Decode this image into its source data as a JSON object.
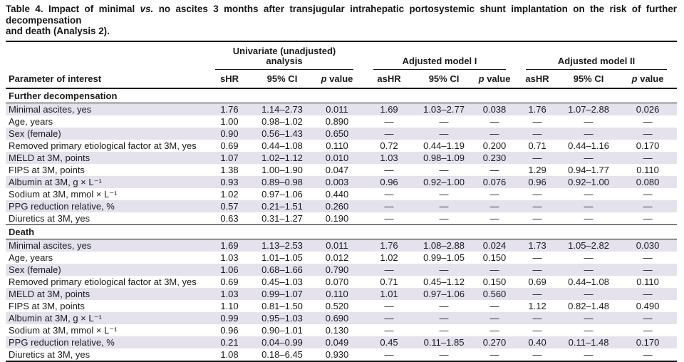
{
  "title": {
    "prefix": "Table 4.",
    "mid1": "Impact of minimal",
    "vs": "vs.",
    "mid2": "no ascites 3 months after transjugular intrahepatic portosystemic shunt implantation on the risk of further decompensation",
    "line2": "and death (Analysis 2)."
  },
  "colors": {
    "row_shade": "#E5E2EE",
    "text": "#1b1b1b",
    "rule": "#141414"
  },
  "table": {
    "param_header": "Parameter of interest",
    "groups": [
      {
        "label": "Univariate (unadjusted) analysis",
        "sub": [
          "sHR",
          "95% CI",
          "p value"
        ]
      },
      {
        "label": "Adjusted model I",
        "sub": [
          "asHR",
          "95% CI",
          "p value"
        ]
      },
      {
        "label": "Adjusted model II",
        "sub": [
          "asHR",
          "95% CI",
          "p value"
        ]
      }
    ],
    "sections": [
      {
        "header": "Further decompensation",
        "rows": [
          {
            "param": "Minimal ascites, yes",
            "values": [
              "1.76",
              "1.14–2.73",
              "0.011",
              "1.69",
              "1.03–2.77",
              "0.038",
              "1.76",
              "1.07–2.88",
              "0.026"
            ]
          },
          {
            "param": "Age, years",
            "values": [
              "1.00",
              "0.98–1.02",
              "0.890",
              "—",
              "—",
              "—",
              "—",
              "—",
              "—"
            ]
          },
          {
            "param": "Sex (female)",
            "values": [
              "0.90",
              "0.56–1.43",
              "0.650",
              "—",
              "—",
              "—",
              "—",
              "—",
              "—"
            ]
          },
          {
            "param": "Removed primary etiological factor at 3M, yes",
            "values": [
              "0.69",
              "0.44–1.08",
              "0.110",
              "0.72",
              "0.44–1.19",
              "0.200",
              "0.71",
              "0.44–1.16",
              "0.170"
            ]
          },
          {
            "param": "MELD at 3M, points",
            "values": [
              "1.07",
              "1.02–1.12",
              "0.010",
              "1.03",
              "0.98–1.09",
              "0.230",
              "—",
              "—",
              "—"
            ]
          },
          {
            "param": "FIPS at 3M, points",
            "values": [
              "1.38",
              "1.00–1.90",
              "0.047",
              "—",
              "—",
              "—",
              "1.29",
              "0.94–1.77",
              "0.110"
            ]
          },
          {
            "param": "Albumin at 3M, g × L⁻¹",
            "values": [
              "0.93",
              "0.89–0.98",
              "0.003",
              "0.96",
              "0.92–1.00",
              "0.076",
              "0.96",
              "0.92–1.00",
              "0.080"
            ]
          },
          {
            "param": "Sodium at 3M, mmol × L⁻¹",
            "values": [
              "1.02",
              "0.97–1.06",
              "0.440",
              "—",
              "—",
              "—",
              "—",
              "—",
              "—"
            ]
          },
          {
            "param": "PPG reduction relative, %",
            "values": [
              "0.57",
              "0.21–1.51",
              "0.260",
              "—",
              "—",
              "—",
              "—",
              "—",
              "—"
            ]
          },
          {
            "param": "Diuretics at 3M, yes",
            "values": [
              "0.63",
              "0.31–1.27",
              "0.190",
              "—",
              "—",
              "—",
              "—",
              "—",
              "—"
            ]
          }
        ]
      },
      {
        "header": "Death",
        "rows": [
          {
            "param": "Minimal ascites, yes",
            "values": [
              "1.69",
              "1.13–2.53",
              "0.011",
              "1.76",
              "1.08–2.88",
              "0.024",
              "1.73",
              "1.05–2.82",
              "0.030"
            ]
          },
          {
            "param": "Age, years",
            "values": [
              "1.03",
              "1.01–1.05",
              "0.012",
              "1.02",
              "0.99–1.05",
              "0.150",
              "—",
              "—",
              "—"
            ]
          },
          {
            "param": "Sex (female)",
            "values": [
              "1.06",
              "0.68–1.66",
              "0.790",
              "—",
              "—",
              "—",
              "—",
              "—",
              "—"
            ]
          },
          {
            "param": "Removed primary etiological factor at 3M, yes",
            "values": [
              "0.69",
              "0.45–1.03",
              "0.070",
              "0.71",
              "0.45–1.12",
              "0.150",
              "0.69",
              "0.44–1.08",
              "0.110"
            ]
          },
          {
            "param": "MELD at 3M, points",
            "values": [
              "1.03",
              "0.99–1.07",
              "0.110",
              "1.01",
              "0.97–1.06",
              "0.560",
              "—",
              "—",
              "—"
            ]
          },
          {
            "param": "FIPS at 3M, points",
            "values": [
              "1.10",
              "0.81–1.50",
              "0.520",
              "—",
              "—",
              "—",
              "1.12",
              "0.82–1.48",
              "0.490"
            ]
          },
          {
            "param": "Albumin at 3M, g × L⁻¹",
            "values": [
              "0.99",
              "0.95–1.03",
              "0.690",
              "—",
              "—",
              "—",
              "—",
              "—",
              "—"
            ]
          },
          {
            "param": "Sodium at 3M, mmol × L⁻¹",
            "values": [
              "0.96",
              "0.90–1.01",
              "0.130",
              "—",
              "—",
              "—",
              "—",
              "—",
              "—"
            ]
          },
          {
            "param": "PPG reduction relative, %",
            "values": [
              "0.21",
              "0.04–0.99",
              "0.049",
              "0.45",
              "0.11–1.85",
              "0.270",
              "0.40",
              "0.11–1.48",
              "0.170"
            ]
          },
          {
            "param": "Diuretics at 3M, yes",
            "values": [
              "1.08",
              "0.18–6.45",
              "0.930",
              "—",
              "—",
              "—",
              "—",
              "—",
              "—"
            ]
          }
        ]
      }
    ]
  }
}
